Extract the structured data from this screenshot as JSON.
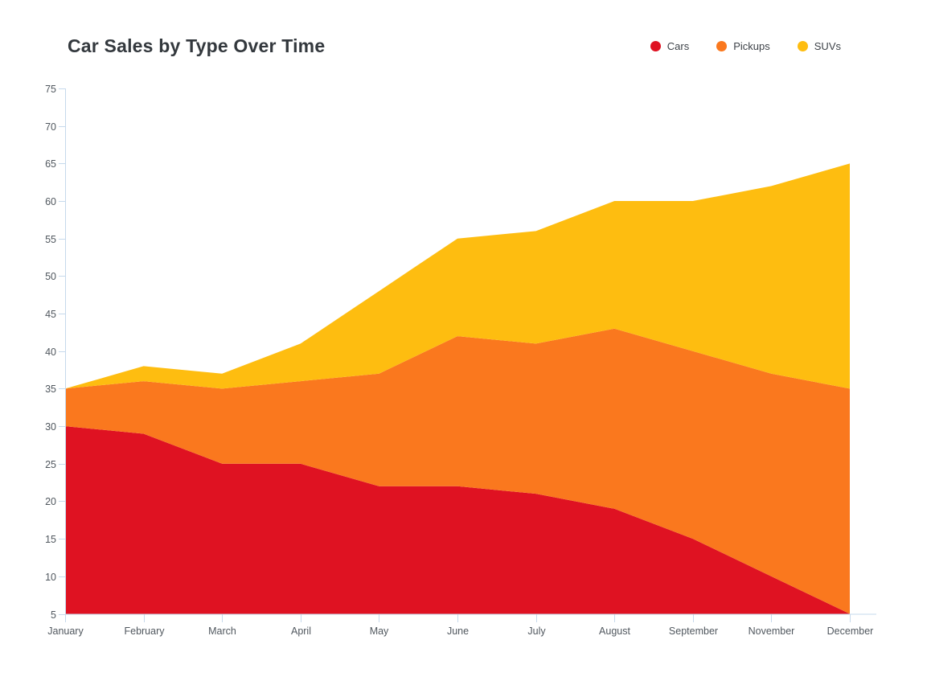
{
  "header": {
    "title": "Car Sales by Type Over Time"
  },
  "chart_data": {
    "type": "area",
    "stacked": true,
    "title": "Car Sales by Type Over Time",
    "xlabel": "",
    "ylabel": "",
    "categories": [
      "January",
      "February",
      "March",
      "April",
      "May",
      "June",
      "July",
      "August",
      "September",
      "November",
      "December"
    ],
    "series": [
      {
        "name": "Cars",
        "color": "#df1222",
        "values": [
          30,
          29,
          25,
          25,
          22,
          22,
          21,
          19,
          15,
          10,
          5
        ]
      },
      {
        "name": "Pickups",
        "color": "#fa781e",
        "values": [
          5,
          7,
          10,
          11,
          15,
          20,
          20,
          24,
          25,
          27,
          30
        ]
      },
      {
        "name": "SUVs",
        "color": "#febd10",
        "values": [
          0,
          2,
          2,
          5,
          11,
          13,
          15,
          17,
          20,
          25,
          30
        ]
      }
    ],
    "stack_totals": [
      35,
      38,
      37,
      41,
      48,
      55,
      56,
      60,
      60,
      62,
      65
    ],
    "ylim": [
      5,
      75
    ],
    "ytick_step": 5,
    "grid": false,
    "legend_position": "top-right",
    "axis_color": "#c6d9ec",
    "tick_label_color": "#50575e"
  }
}
